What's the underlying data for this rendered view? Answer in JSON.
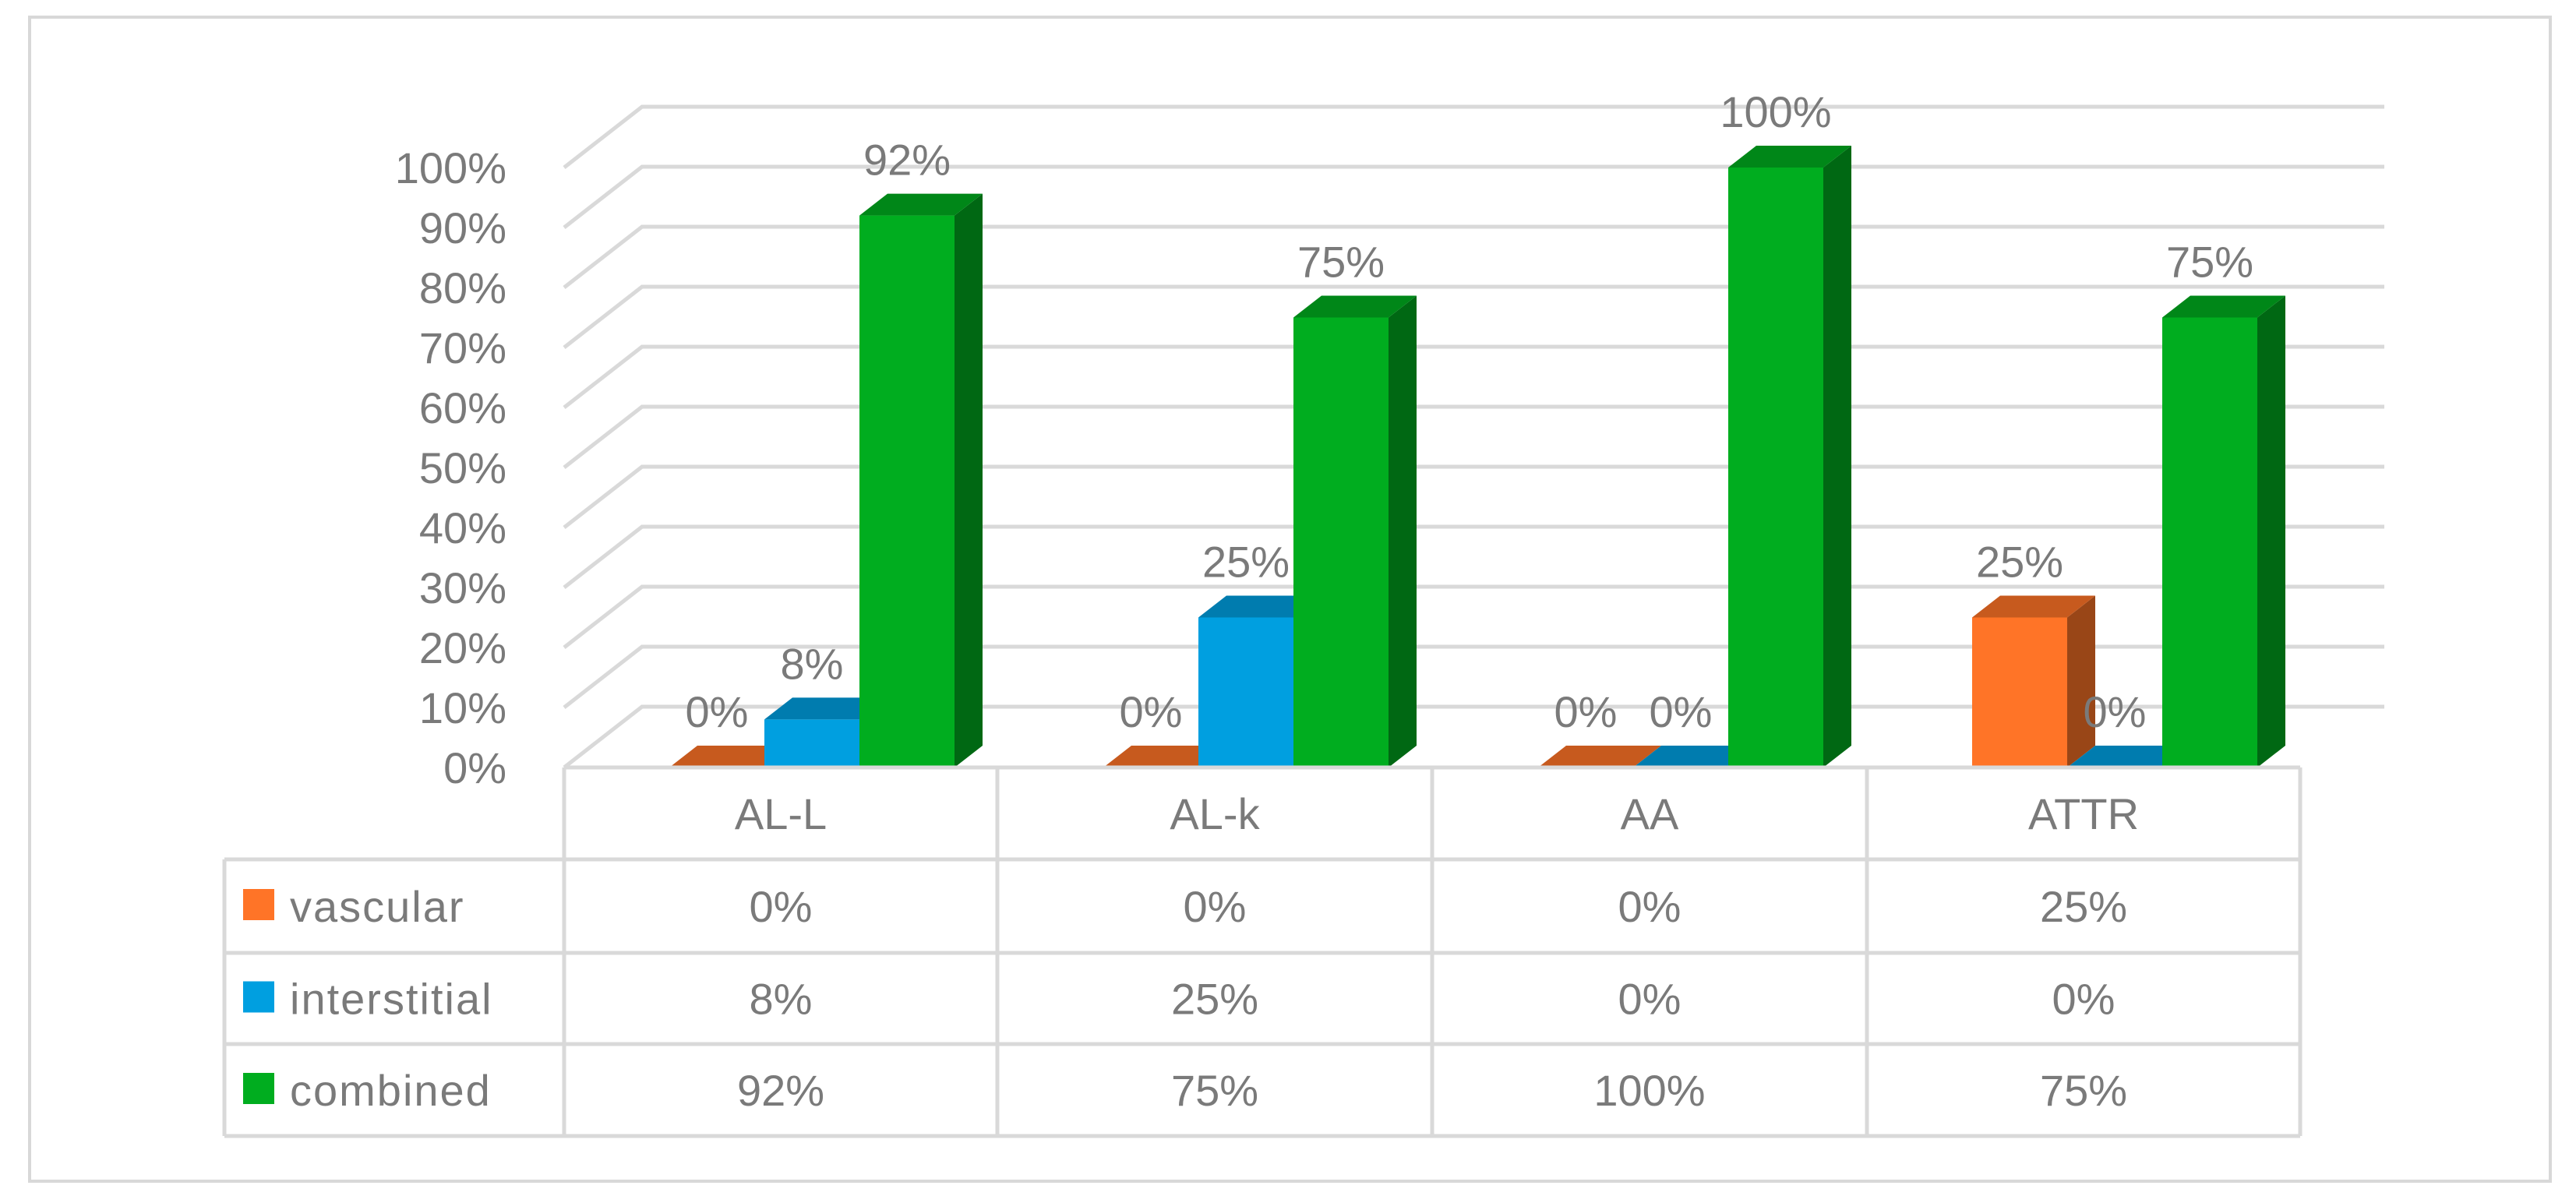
{
  "chart_data": {
    "type": "bar",
    "title": "",
    "xlabel": "",
    "ylabel": "",
    "ylim": [
      0,
      100
    ],
    "y_ticks": [
      "0%",
      "10%",
      "20%",
      "30%",
      "40%",
      "50%",
      "60%",
      "70%",
      "80%",
      "90%",
      "100%"
    ],
    "categories": [
      "AL-L",
      "AL-k",
      "AA",
      "ATTR"
    ],
    "series": [
      {
        "name": "vascular",
        "color": "#ff7427",
        "values": [
          0,
          0,
          0,
          25
        ],
        "labels": [
          "0%",
          "0%",
          "0%",
          "25%"
        ]
      },
      {
        "name": "interstitial",
        "color": "#009fe0",
        "values": [
          8,
          25,
          0,
          0
        ],
        "labels": [
          "8%",
          "25%",
          "0%",
          "0%"
        ]
      },
      {
        "name": "combined",
        "color": "#00ad1f",
        "values": [
          92,
          75,
          100,
          75
        ],
        "labels": [
          "92%",
          "75%",
          "100%",
          "75%"
        ]
      }
    ],
    "grid": true,
    "legend": "data-table-below",
    "style": "3d-clustered-column-with-data-table"
  }
}
